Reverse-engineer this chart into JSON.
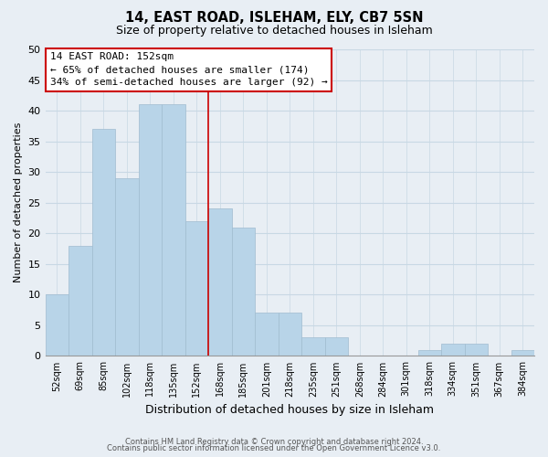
{
  "title": "14, EAST ROAD, ISLEHAM, ELY, CB7 5SN",
  "subtitle": "Size of property relative to detached houses in Isleham",
  "xlabel": "Distribution of detached houses by size in Isleham",
  "ylabel": "Number of detached properties",
  "bin_labels": [
    "52sqm",
    "69sqm",
    "85sqm",
    "102sqm",
    "118sqm",
    "135sqm",
    "152sqm",
    "168sqm",
    "185sqm",
    "201sqm",
    "218sqm",
    "235sqm",
    "251sqm",
    "268sqm",
    "284sqm",
    "301sqm",
    "318sqm",
    "334sqm",
    "351sqm",
    "367sqm",
    "384sqm"
  ],
  "bar_heights": [
    10,
    18,
    37,
    29,
    41,
    41,
    22,
    24,
    21,
    7,
    7,
    3,
    3,
    0,
    0,
    0,
    1,
    2,
    2,
    0,
    1
  ],
  "bar_color": "#b8d4e8",
  "bar_edge_color": "#a0bcd0",
  "grid_color": "#c8d8e4",
  "background_color": "#e8eef4",
  "plot_bg_color": "#e8eef4",
  "vline_index": 6,
  "vline_color": "#cc0000",
  "annotation_title": "14 EAST ROAD: 152sqm",
  "annotation_line1": "← 65% of detached houses are smaller (174)",
  "annotation_line2": "34% of semi-detached houses are larger (92) →",
  "annotation_box_color": "#ffffff",
  "annotation_box_edge": "#cc0000",
  "ylim": [
    0,
    50
  ],
  "yticks": [
    0,
    5,
    10,
    15,
    20,
    25,
    30,
    35,
    40,
    45,
    50
  ],
  "footer1": "Contains HM Land Registry data © Crown copyright and database right 2024.",
  "footer2": "Contains public sector information licensed under the Open Government Licence v3.0."
}
